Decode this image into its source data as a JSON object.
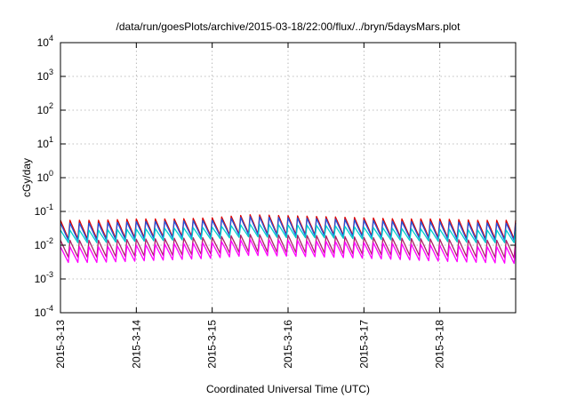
{
  "chart_data": {
    "type": "line",
    "title": "/data/run/goesPlots/archive/2015-03-18/22:00/flux/../bryn/5daysMars.plot",
    "xlabel": "Coordinated Universal Time (UTC)",
    "ylabel": "cGy/day",
    "yscale": "log",
    "ylim": [
      0.0001,
      10000
    ],
    "y_ticks": [
      {
        "value": 0.0001,
        "mantissa": "10",
        "exp": "-4"
      },
      {
        "value": 0.001,
        "mantissa": "10",
        "exp": "-3"
      },
      {
        "value": 0.01,
        "mantissa": "10",
        "exp": "-2"
      },
      {
        "value": 0.1,
        "mantissa": "10",
        "exp": "-1"
      },
      {
        "value": 1,
        "mantissa": "10",
        "exp": "0"
      },
      {
        "value": 10,
        "mantissa": "10",
        "exp": "1"
      },
      {
        "value": 100,
        "mantissa": "10",
        "exp": "2"
      },
      {
        "value": 1000,
        "mantissa": "10",
        "exp": "3"
      },
      {
        "value": 10000,
        "mantissa": "10",
        "exp": "4"
      }
    ],
    "xlim": [
      "2015-03-13",
      "2015-03-19"
    ],
    "x_ticks": [
      {
        "date": "2015-03-13",
        "label": "2015-3-13"
      },
      {
        "date": "2015-03-14",
        "label": "2015-3-14"
      },
      {
        "date": "2015-03-15",
        "label": "2015-3-15"
      },
      {
        "date": "2015-03-16",
        "label": "2015-3-16"
      },
      {
        "date": "2015-03-17",
        "label": "2015-3-17"
      },
      {
        "date": "2015-03-18",
        "label": "2015-3-18"
      }
    ],
    "grid": true,
    "series": [
      {
        "color": "#dd0000",
        "x": [
          "2015-03-13",
          "2015-03-13T12:00",
          "2015-03-14",
          "2015-03-14T12:00",
          "2015-03-15",
          "2015-03-15T12:00",
          "2015-03-16",
          "2015-03-16T12:00",
          "2015-03-17",
          "2015-03-17T12:00",
          "2015-03-18",
          "2015-03-18T12:00",
          "2015-03-19"
        ],
        "peak": [
          0.055,
          0.055,
          0.06,
          0.06,
          0.065,
          0.08,
          0.075,
          0.07,
          0.065,
          0.06,
          0.06,
          0.055,
          0.055
        ],
        "trough": [
          0.012,
          0.012,
          0.013,
          0.014,
          0.015,
          0.017,
          0.016,
          0.016,
          0.015,
          0.014,
          0.013,
          0.012,
          0.012
        ]
      },
      {
        "color": "#2255dd",
        "x": [
          "2015-03-13",
          "2015-03-13T12:00",
          "2015-03-14",
          "2015-03-14T12:00",
          "2015-03-15",
          "2015-03-15T12:00",
          "2015-03-16",
          "2015-03-16T12:00",
          "2015-03-17",
          "2015-03-17T12:00",
          "2015-03-18",
          "2015-03-18T12:00",
          "2015-03-19"
        ],
        "peak": [
          0.045,
          0.045,
          0.05,
          0.052,
          0.055,
          0.07,
          0.065,
          0.06,
          0.055,
          0.05,
          0.05,
          0.046,
          0.045
        ],
        "trough": [
          0.011,
          0.011,
          0.012,
          0.013,
          0.014,
          0.016,
          0.015,
          0.015,
          0.014,
          0.013,
          0.012,
          0.011,
          0.011
        ]
      },
      {
        "color": "#00cccc",
        "x": [
          "2015-03-13",
          "2015-03-13T12:00",
          "2015-03-14",
          "2015-03-14T12:00",
          "2015-03-15",
          "2015-03-15T12:00",
          "2015-03-16",
          "2015-03-16T12:00",
          "2015-03-17",
          "2015-03-17T12:00",
          "2015-03-18",
          "2015-03-18T12:00",
          "2015-03-19"
        ],
        "peak": [
          0.028,
          0.028,
          0.03,
          0.032,
          0.034,
          0.042,
          0.04,
          0.038,
          0.034,
          0.031,
          0.03,
          0.028,
          0.028
        ],
        "trough": [
          0.01,
          0.01,
          0.011,
          0.012,
          0.013,
          0.015,
          0.014,
          0.014,
          0.013,
          0.012,
          0.011,
          0.01,
          0.01
        ]
      },
      {
        "color": "#aa2266",
        "x": [
          "2015-03-13",
          "2015-03-13T12:00",
          "2015-03-14",
          "2015-03-14T12:00",
          "2015-03-15",
          "2015-03-15T12:00",
          "2015-03-16",
          "2015-03-16T12:00",
          "2015-03-17",
          "2015-03-17T12:00",
          "2015-03-18",
          "2015-03-18T12:00",
          "2015-03-19"
        ],
        "peak": [
          0.014,
          0.014,
          0.015,
          0.016,
          0.017,
          0.021,
          0.02,
          0.019,
          0.017,
          0.016,
          0.015,
          0.014,
          0.014
        ],
        "trough": [
          0.0035,
          0.0035,
          0.0038,
          0.004,
          0.0045,
          0.005,
          0.0048,
          0.0046,
          0.0043,
          0.004,
          0.0038,
          0.0035,
          0.0033
        ]
      },
      {
        "color": "#ff00ff",
        "x": [
          "2015-03-13",
          "2015-03-13T12:00",
          "2015-03-14",
          "2015-03-14T12:00",
          "2015-03-15",
          "2015-03-15T12:00",
          "2015-03-16",
          "2015-03-16T12:00",
          "2015-03-17",
          "2015-03-17T12:00",
          "2015-03-18",
          "2015-03-18T12:00",
          "2015-03-19"
        ],
        "peak": [
          0.009,
          0.009,
          0.01,
          0.011,
          0.012,
          0.015,
          0.014,
          0.013,
          0.012,
          0.011,
          0.01,
          0.009,
          0.009
        ],
        "trough": [
          0.0025,
          0.0025,
          0.0027,
          0.003,
          0.0033,
          0.004,
          0.0038,
          0.0036,
          0.0033,
          0.003,
          0.0027,
          0.0025,
          0.0023
        ]
      }
    ]
  }
}
